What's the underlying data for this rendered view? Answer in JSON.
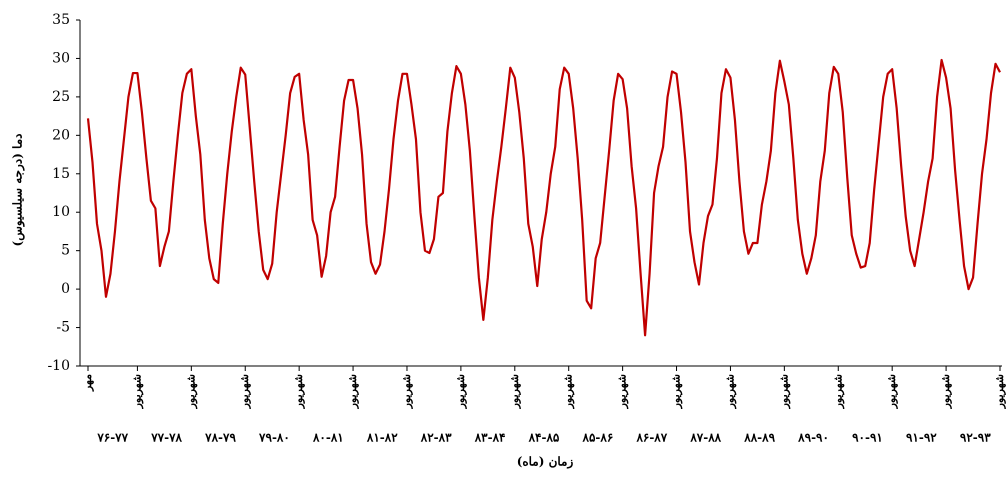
{
  "chart_data": {
    "type": "line",
    "ylabel": "دما (درجه سیلسیوس)",
    "xlabel": "زمان (ماه)",
    "ylim": [
      -10,
      35
    ],
    "yticks": [
      -10,
      -5,
      0,
      5,
      10,
      15,
      20,
      25,
      30,
      35
    ],
    "grid": false,
    "categories": [
      "مهر",
      null,
      null,
      null,
      null,
      null,
      null,
      null,
      null,
      null,
      null,
      "شهریور",
      null,
      null,
      null,
      null,
      null,
      null,
      null,
      null,
      null,
      null,
      null,
      "شهریور",
      null,
      null,
      null,
      null,
      null,
      null,
      null,
      null,
      null,
      null,
      null,
      "شهریور",
      null,
      null,
      null,
      null,
      null,
      null,
      null,
      null,
      null,
      null,
      null,
      "شهریور",
      null,
      null,
      null,
      null,
      null,
      null,
      null,
      null,
      null,
      null,
      null,
      "شهریور",
      null,
      null,
      null,
      null,
      null,
      null,
      null,
      null,
      null,
      null,
      null,
      "شهریور",
      null,
      null,
      null,
      null,
      null,
      null,
      null,
      null,
      null,
      null,
      null,
      "شهریور",
      null,
      null,
      null,
      null,
      null,
      null,
      null,
      null,
      null,
      null,
      null,
      "شهریور",
      null,
      null,
      null,
      null,
      null,
      null,
      null,
      null,
      null,
      null,
      null,
      "شهریور",
      null,
      null,
      null,
      null,
      null,
      null,
      null,
      null,
      null,
      null,
      null,
      "شهریور",
      null,
      null,
      null,
      null,
      null,
      null,
      null,
      null,
      null,
      null,
      null,
      "شهریور",
      null,
      null,
      null,
      null,
      null,
      null,
      null,
      null,
      null,
      null,
      null,
      "شهریور",
      null,
      null,
      null,
      null,
      null,
      null,
      null,
      null,
      null,
      null,
      null,
      "شهریور",
      null,
      null,
      null,
      null,
      null,
      null,
      null,
      null,
      null,
      null,
      null,
      "شهریور",
      null,
      null,
      null,
      null,
      null,
      null,
      null,
      null,
      null,
      null,
      null,
      "شهریور",
      null,
      null,
      null,
      null,
      null,
      null,
      null,
      null,
      null,
      null,
      null,
      "شهریور",
      null,
      null,
      null,
      null,
      null,
      null,
      null,
      null,
      null,
      null,
      null,
      "شهریور"
    ],
    "year_labels": [
      "۷۶-۷۷",
      "۷۷-۷۸",
      "۷۸-۷۹",
      "۷۹-۸۰",
      "۸۰-۸۱",
      "۸۱-۸۲",
      "۸۲-۸۳",
      "۸۳-۸۴",
      "۸۴-۸۵",
      "۸۵-۸۶",
      "۸۶-۸۷",
      "۸۷-۸۸",
      "۸۸-۸۹",
      "۸۹-۹۰",
      "۹۰-۹۱",
      "۹۱-۹۲",
      "۹۲-۹۳"
    ],
    "series": [
      {
        "color": "#c00000",
        "values": [
          22.2,
          16.5,
          8.5,
          5,
          -1,
          2,
          7.5,
          14,
          19.5,
          25,
          28.1,
          28.1,
          23,
          17,
          11.5,
          10.5,
          3,
          5.5,
          7.5,
          14,
          20,
          25.5,
          28,
          28.6,
          22.5,
          17.5,
          9,
          4,
          1.3,
          0.8,
          8.5,
          15,
          20.5,
          25,
          28.8,
          27.9,
          21,
          14,
          7.5,
          2.5,
          1.3,
          3.3,
          10,
          15,
          20,
          25.5,
          27.6,
          28,
          22,
          17.5,
          9,
          7,
          1.6,
          4.3,
          10,
          12,
          18.5,
          24.5,
          27.2,
          27.2,
          23.5,
          17.5,
          8.5,
          3.5,
          2,
          3.2,
          7.5,
          13,
          19.5,
          24.5,
          28,
          28,
          24,
          19.5,
          10,
          5,
          4.7,
          6.5,
          12,
          12.5,
          20.5,
          25.5,
          29,
          28,
          24,
          18,
          9.5,
          1.5,
          -4,
          1.5,
          9,
          14,
          18.5,
          23.5,
          28.8,
          27.5,
          23,
          17,
          8.5,
          5.5,
          0.4,
          6.5,
          10,
          15,
          18.5,
          26,
          28.8,
          28,
          23.5,
          17,
          9,
          -1.5,
          -2.5,
          4,
          6,
          12,
          18,
          24.5,
          28,
          27.3,
          23.5,
          16,
          10.5,
          2,
          -6,
          2,
          12.5,
          16,
          18.5,
          25,
          28.3,
          28,
          23,
          16.5,
          7.5,
          3.5,
          0.6,
          6,
          9.5,
          11,
          17,
          25.5,
          28.6,
          27.5,
          22,
          14,
          7.5,
          4.6,
          6,
          6,
          11,
          14,
          18,
          25.5,
          29.7,
          27,
          24,
          17,
          9,
          4.6,
          2,
          4,
          7,
          14,
          18,
          25.5,
          28.9,
          28,
          23,
          14.5,
          7,
          4.6,
          2.8,
          3,
          6,
          13,
          19,
          25,
          28,
          28.6,
          23.5,
          16,
          9.5,
          5,
          3,
          6.5,
          10,
          14,
          17,
          25,
          29.8,
          27.5,
          23.5,
          15.5,
          9,
          3,
          0,
          1.5,
          8.5,
          15,
          19.5,
          25.5,
          29.3,
          28.2
        ]
      }
    ]
  }
}
